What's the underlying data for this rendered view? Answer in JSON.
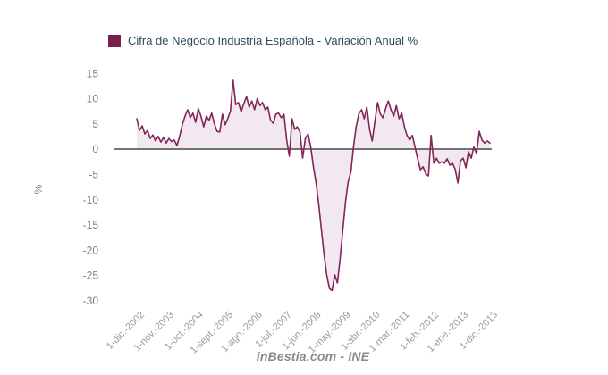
{
  "legend": {
    "label": "Cifra de Negocio Industria Española - Variación Anual %",
    "swatch_color": "#7c1f4e",
    "text_color": "#2e4d5c"
  },
  "footer": {
    "text": "inBestia.com - INE"
  },
  "chart_data": {
    "type": "area",
    "title": "Cifra de Negocio Industria Española - Variación Anual %",
    "xlabel": "",
    "ylabel": "%",
    "ylim": [
      -32,
      16
    ],
    "yticks": [
      15,
      10,
      5,
      0,
      -5,
      -10,
      -15,
      -20,
      -25,
      -30
    ],
    "grid": false,
    "legend_position": "top",
    "x_tick_labels": [
      "1-dic.-2002",
      "1-nov.-2003",
      "1-oct.-2004",
      "1-sept.-2005",
      "1-ago.-2006",
      "1-jul.-2007",
      "1-jun.-2008",
      "1-may.-2009",
      "1-abr.-2010",
      "1-mar.-2011",
      "1-feb.-2012",
      "1-ene.-2013",
      "1-dic.-2013"
    ],
    "x_tick_indices": [
      0,
      11,
      22,
      33,
      44,
      55,
      66,
      77,
      88,
      99,
      110,
      121,
      132
    ],
    "x_unit": "month (monthly series, Dec 2002 - Dec 2013)",
    "series": [
      {
        "name": "Cifra de Negocio Industria Española - Variación Anual %",
        "values": [
          6.0,
          3.7,
          4.6,
          3.0,
          3.7,
          2.1,
          2.8,
          1.6,
          2.5,
          1.4,
          2.3,
          1.2,
          2.1,
          1.5,
          1.8,
          0.7,
          2.5,
          4.8,
          6.5,
          7.8,
          6.2,
          7.1,
          5.3,
          8.0,
          6.5,
          4.4,
          6.5,
          5.7,
          7.1,
          5.0,
          3.5,
          3.4,
          6.9,
          4.8,
          6.0,
          7.5,
          13.6,
          8.8,
          9.2,
          7.4,
          9.0,
          10.4,
          8.3,
          9.5,
          7.8,
          10.0,
          8.6,
          9.2,
          7.8,
          8.3,
          5.7,
          5.1,
          6.9,
          7.1,
          6.2,
          6.9,
          1.8,
          -1.4,
          6.0,
          3.9,
          4.4,
          3.4,
          -1.8,
          2.1,
          3.0,
          0.5,
          -3.5,
          -6.7,
          -11.0,
          -16.0,
          -21.0,
          -25.0,
          -27.6,
          -28.0,
          -24.9,
          -26.5,
          -21.7,
          -16.0,
          -10.5,
          -6.5,
          -4.6,
          0.5,
          4.5,
          7.0,
          7.8,
          6.0,
          8.3,
          4.0,
          1.6,
          5.5,
          9.2,
          7.0,
          6.2,
          8.0,
          9.5,
          7.8,
          6.5,
          8.6,
          6.0,
          7.1,
          4.5,
          2.7,
          1.8,
          2.7,
          0.4,
          -2.0,
          -4.1,
          -3.5,
          -4.9,
          -5.3,
          2.7,
          -2.8,
          -1.8,
          -2.8,
          -2.5,
          -2.8,
          -1.9,
          -3.2,
          -2.8,
          -4.0,
          -6.7,
          -2.3,
          -1.8,
          -3.7,
          -0.5,
          -1.8,
          0.4,
          -0.9,
          3.5,
          1.8,
          1.2,
          1.6,
          1.2
        ]
      }
    ],
    "colors": {
      "line": "#84245a",
      "fill": "#f2e8ef",
      "zero_line": "#737373",
      "y_tick_text": "#808080",
      "x_tick_text": "#9a9a9a",
      "axis_title_text": "#808080"
    }
  }
}
